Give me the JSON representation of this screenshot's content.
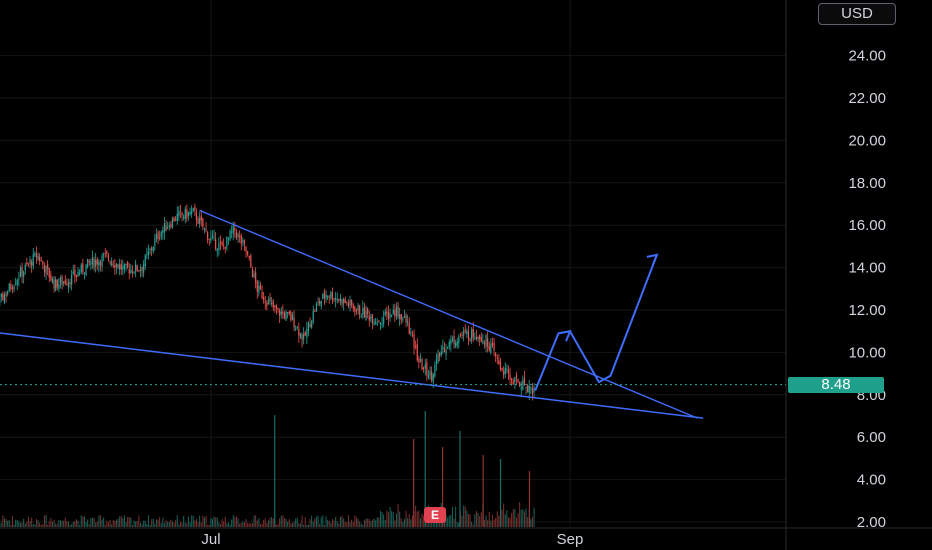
{
  "header": {
    "currency": "USD"
  },
  "last_price": {
    "label": "8.48"
  },
  "earnings_marker": {
    "label": "E"
  },
  "colors": {
    "up": "#26a69a",
    "down": "#ef5350",
    "drawing": "#3f6dff",
    "price_line": "#26a69a"
  },
  "chart_data": {
    "type": "candlestick",
    "title": "",
    "xlabel": "",
    "ylabel": "",
    "currency": "USD",
    "ylim": [
      2.0,
      26.0
    ],
    "y_ticks": [
      "2.00",
      "4.00",
      "6.00",
      "8.00",
      "10.00",
      "12.00",
      "14.00",
      "16.00",
      "18.00",
      "20.00",
      "22.00",
      "24.00"
    ],
    "x_ticks": [
      {
        "label": "Jul",
        "date": "2024-07-01"
      },
      {
        "label": "Sep",
        "date": "2024-09-01"
      }
    ],
    "last_price": 8.48,
    "grid": true,
    "price_path": [
      [
        "2024-05-15",
        11.3
      ],
      [
        "2024-05-20",
        11.2
      ],
      [
        "2024-05-23",
        11.1
      ],
      [
        "2024-05-26",
        12.6
      ],
      [
        "2024-05-29",
        13.7
      ],
      [
        "2024-06-01",
        14.6
      ],
      [
        "2024-06-04",
        13.2
      ],
      [
        "2024-06-07",
        13.5
      ],
      [
        "2024-06-10",
        14.2
      ],
      [
        "2024-06-13",
        14.5
      ],
      [
        "2024-06-16",
        13.9
      ],
      [
        "2024-06-19",
        14.0
      ],
      [
        "2024-06-22",
        15.6
      ],
      [
        "2024-06-25",
        16.4
      ],
      [
        "2024-06-28",
        16.6
      ],
      [
        "2024-07-01",
        15.3
      ],
      [
        "2024-07-03",
        14.9
      ],
      [
        "2024-07-05",
        15.8
      ],
      [
        "2024-07-07",
        14.8
      ],
      [
        "2024-07-09",
        13.0
      ],
      [
        "2024-07-12",
        12.0
      ],
      [
        "2024-07-15",
        11.6
      ],
      [
        "2024-07-17",
        10.6
      ],
      [
        "2024-07-19",
        12.1
      ],
      [
        "2024-07-21",
        12.8
      ],
      [
        "2024-07-24",
        12.4
      ],
      [
        "2024-07-27",
        11.9
      ],
      [
        "2024-07-30",
        11.5
      ],
      [
        "2024-08-02",
        12.0
      ],
      [
        "2024-08-04",
        11.3
      ],
      [
        "2024-08-06",
        9.5
      ],
      [
        "2024-08-08",
        8.9
      ],
      [
        "2024-08-10",
        10.2
      ],
      [
        "2024-08-13",
        10.8
      ],
      [
        "2024-08-16",
        10.9
      ],
      [
        "2024-08-18",
        10.4
      ],
      [
        "2024-08-20",
        9.3
      ],
      [
        "2024-08-22",
        8.7
      ],
      [
        "2024-08-24",
        8.5
      ],
      [
        "2024-08-26",
        8.2
      ]
    ],
    "volume_spikes": [
      [
        "2024-07-12",
        2.8
      ],
      [
        "2024-08-05",
        2.2
      ],
      [
        "2024-08-07",
        2.9
      ],
      [
        "2024-08-10",
        2.0
      ],
      [
        "2024-08-13",
        2.4
      ],
      [
        "2024-08-17",
        1.8
      ],
      [
        "2024-08-20",
        1.7
      ],
      [
        "2024-08-25",
        1.4
      ]
    ],
    "drawings": [
      {
        "kind": "trendline",
        "points": [
          [
            "2024-06-29",
            16.7
          ],
          [
            "2024-09-23",
            6.9
          ]
        ]
      },
      {
        "kind": "trendline",
        "points": [
          [
            "2024-05-23",
            11.0
          ],
          [
            "2024-09-24",
            6.9
          ]
        ]
      },
      {
        "kind": "projection_arrow",
        "points": [
          [
            "2024-08-26",
            8.2
          ],
          [
            "2024-08-30",
            10.9
          ],
          [
            "2024-09-01",
            11.0
          ],
          [
            "2024-09-06",
            8.6
          ],
          [
            "2024-09-08",
            8.9
          ],
          [
            "2024-09-16",
            14.6
          ]
        ]
      }
    ]
  }
}
